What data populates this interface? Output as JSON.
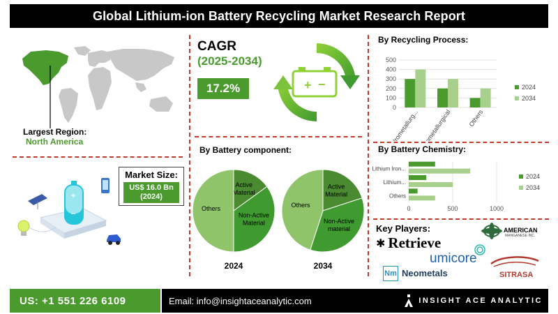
{
  "header": {
    "title": "Global Lithium-ion Battery Recycling Market Research Report"
  },
  "region": {
    "label": "Largest Region:",
    "value": "North America"
  },
  "cagr": {
    "label": "CAGR",
    "period": "(2025-2034)",
    "value": "17.2%"
  },
  "market_size": {
    "label": "Market Size:",
    "value": "US$ 16.0 Bn",
    "year": "(2024)"
  },
  "battery_component": {
    "title": "By Battery component:"
  },
  "key_players": {
    "title": "Key Players:",
    "names": {
      "retrieve": "Retrieve",
      "umicore": "umicore",
      "neometals": "Neometals",
      "sitrasa": "SITRASA",
      "american": "AMERICAN",
      "american_sub": "MANGANESE INC.",
      "nm": "Nm"
    }
  },
  "footer": {
    "phone": "US: +1 551 226 6109",
    "email": "Email: info@insightaceanalytic.com",
    "brand": "INSIGHT ACE ANALYTIC"
  },
  "colors": {
    "dark_green": "#4a9a2e",
    "light_green": "#a8d08d",
    "accent_red": "#c0392b"
  },
  "chart_data": [
    {
      "type": "bar",
      "title": "By Recycling Process:",
      "categories": [
        "Hydrometallurg...",
        "Pyrometallurgical",
        "Others"
      ],
      "series": [
        {
          "name": "2024",
          "values": [
            300,
            200,
            100
          ]
        },
        {
          "name": "2034",
          "values": [
            400,
            300,
            200
          ]
        }
      ],
      "ylim": [
        0,
        500
      ],
      "yticks": [
        0,
        100,
        200,
        300,
        400,
        500
      ],
      "legend": "right"
    },
    {
      "type": "bar",
      "orientation": "horizontal",
      "title": "By Battery Chemistry:",
      "categories": [
        "Lithium Iron...",
        "Lithium...",
        "Others"
      ],
      "series": [
        {
          "name": "2024",
          "values": [
            300,
            200,
            100
          ]
        },
        {
          "name": "2034",
          "values": [
            700,
            500,
            300
          ]
        }
      ],
      "xlim": [
        0,
        1000
      ],
      "xticks": [
        0,
        500,
        1000
      ],
      "legend": "right"
    },
    {
      "type": "pie",
      "title": "2024",
      "labels": [
        "Active Material",
        "Non-Active Material",
        "Others"
      ],
      "values": [
        15,
        35,
        50
      ],
      "colors": [
        "#4a8a30",
        "#3f9a2f",
        "#8fc46a"
      ]
    },
    {
      "type": "pie",
      "title": "2034",
      "labels": [
        "Active Material",
        "Non-Active material",
        "Others"
      ],
      "values": [
        20,
        35,
        45
      ],
      "colors": [
        "#4a8a30",
        "#3f9a2f",
        "#8fc46a"
      ]
    }
  ]
}
